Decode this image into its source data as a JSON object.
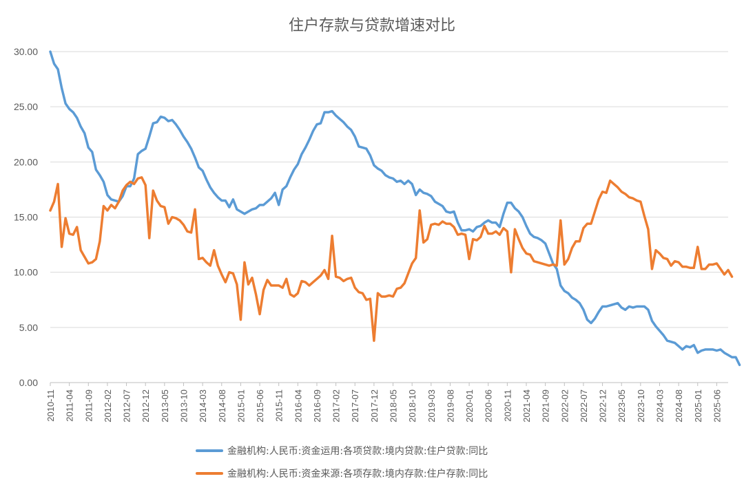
{
  "chart_data": {
    "type": "line",
    "title": "住户存款与贷款增速对比",
    "ylim": [
      0,
      30
    ],
    "yticks": [
      "0.00",
      "5.00",
      "10.00",
      "15.00",
      "20.00",
      "25.00",
      "30.00"
    ],
    "ytick_values": [
      0,
      5,
      10,
      15,
      20,
      25,
      30
    ],
    "x_start": "2010-11",
    "x_end": "2025-09",
    "xtick_labels": [
      "2010-11",
      "2011-04",
      "2011-09",
      "2012-02",
      "2012-07",
      "2012-12",
      "2013-05",
      "2013-10",
      "2014-03",
      "2014-08",
      "2015-01",
      "2015-06",
      "2015-11",
      "2016-04",
      "2016-09",
      "2017-02",
      "2017-07",
      "2017-12",
      "2018-05",
      "2018-10",
      "2019-03",
      "2019-08",
      "2020-01",
      "2020-06",
      "2020-11",
      "2021-04",
      "2021-09",
      "2022-02",
      "2022-07",
      "2022-12",
      "2023-05",
      "2023-10",
      "2024-03",
      "2024-08",
      "2025-01",
      "2025-06"
    ],
    "grid": true,
    "legend_position": "bottom",
    "series": [
      {
        "name": "金融机构:人民币:资金运用:各项贷款:境内贷款:住户贷款:同比",
        "color": "#5b9bd5",
        "values": [
          30.5,
          28.9,
          28.4,
          26.7,
          25.3,
          24.8,
          24.5,
          24.0,
          23.2,
          22.6,
          21.3,
          20.9,
          19.3,
          18.8,
          18.2,
          17.0,
          16.6,
          16.5,
          16.4,
          16.9,
          17.8,
          17.8,
          18.5,
          20.7,
          21.0,
          21.2,
          22.3,
          23.5,
          23.6,
          24.1,
          24.0,
          23.7,
          23.8,
          23.4,
          22.9,
          22.3,
          21.8,
          21.2,
          20.4,
          19.5,
          19.2,
          18.4,
          17.7,
          17.2,
          16.8,
          16.5,
          16.5,
          15.9,
          16.6,
          15.7,
          15.5,
          15.3,
          15.5,
          15.7,
          15.8,
          16.1,
          16.1,
          16.4,
          16.7,
          17.2,
          16.1,
          17.5,
          17.8,
          18.6,
          19.3,
          19.8,
          20.7,
          21.3,
          22.0,
          22.8,
          23.4,
          23.5,
          24.5,
          24.5,
          24.6,
          24.2,
          23.9,
          23.6,
          23.2,
          22.9,
          22.3,
          21.4,
          21.3,
          21.2,
          20.6,
          19.7,
          19.4,
          19.2,
          18.8,
          18.6,
          18.5,
          18.2,
          18.3,
          18.0,
          18.3,
          18.0,
          17.0,
          17.5,
          17.2,
          17.1,
          16.9,
          16.4,
          16.2,
          16.0,
          15.5,
          15.4,
          15.5,
          14.5,
          13.8,
          13.8,
          13.9,
          13.7,
          14.1,
          14.2,
          14.5,
          14.7,
          14.5,
          14.5,
          14.1,
          15.3,
          16.3,
          16.3,
          15.8,
          15.5,
          15.0,
          14.2,
          13.5,
          13.2,
          13.1,
          12.9,
          12.6,
          11.7,
          10.8,
          10.3,
          8.8,
          8.3,
          8.1,
          7.7,
          7.5,
          7.2,
          6.6,
          5.7,
          5.4,
          5.8,
          6.4,
          6.9,
          6.9,
          7.0,
          7.1,
          7.2,
          6.8,
          6.6,
          6.9,
          6.8,
          6.9,
          6.9,
          6.9,
          6.6,
          5.6,
          5.1,
          4.7,
          4.3,
          3.8,
          3.7,
          3.6,
          3.3,
          3.0,
          3.3,
          3.2,
          3.4,
          2.7,
          2.9,
          3.0,
          3.0,
          3.0,
          2.9,
          3.0,
          2.7,
          2.5,
          2.3,
          2.3,
          1.6
        ]
      },
      {
        "name": "金融机构:人民币:资金来源:各项存款:境内存款:住户存款:同比",
        "color": "#ed7d31",
        "values": [
          15.6,
          16.4,
          18.0,
          12.3,
          14.9,
          13.5,
          13.4,
          14.1,
          12.0,
          11.4,
          10.8,
          10.9,
          11.2,
          12.8,
          16.0,
          15.6,
          16.1,
          15.8,
          16.4,
          17.4,
          17.9,
          18.2,
          18.0,
          18.5,
          18.6,
          17.9,
          13.1,
          17.4,
          16.5,
          16.0,
          15.9,
          14.4,
          15.0,
          14.9,
          14.7,
          14.3,
          13.7,
          13.6,
          15.7,
          11.2,
          11.3,
          10.9,
          10.6,
          12.0,
          10.6,
          9.8,
          9.1,
          10.0,
          9.9,
          8.9,
          5.7,
          10.9,
          8.9,
          9.5,
          8.0,
          6.2,
          8.4,
          9.3,
          8.8,
          8.8,
          8.8,
          8.6,
          9.4,
          8.0,
          7.8,
          8.1,
          9.2,
          9.1,
          8.8,
          9.1,
          9.4,
          9.7,
          10.2,
          9.4,
          13.3,
          9.6,
          9.5,
          9.2,
          9.4,
          9.5,
          8.6,
          8.2,
          8.1,
          7.5,
          7.6,
          3.8,
          8.1,
          7.8,
          7.8,
          7.9,
          7.8,
          8.5,
          8.6,
          9.0,
          9.9,
          10.8,
          11.3,
          15.6,
          12.7,
          13.0,
          14.3,
          14.4,
          14.3,
          14.6,
          14.4,
          14.4,
          14.1,
          13.4,
          13.5,
          13.4,
          11.2,
          13.0,
          12.9,
          13.2,
          14.2,
          13.5,
          13.5,
          13.7,
          13.4,
          14.0,
          13.7,
          10.0,
          13.9,
          13.0,
          12.2,
          11.7,
          11.6,
          11.0,
          10.9,
          10.8,
          10.7,
          10.6,
          10.7,
          10.6,
          14.7,
          10.7,
          11.2,
          12.2,
          12.8,
          12.8,
          14.0,
          14.4,
          14.4,
          15.5,
          16.6,
          17.3,
          17.2,
          18.3,
          18.0,
          17.7,
          17.3,
          17.1,
          16.8,
          16.7,
          16.5,
          16.4,
          15.1,
          13.9,
          10.3,
          12.0,
          11.7,
          11.3,
          11.2,
          10.6,
          11.0,
          10.9,
          10.5,
          10.5,
          10.4,
          10.4,
          12.3,
          10.3,
          10.3,
          10.7,
          10.7,
          10.8,
          10.3,
          9.8,
          10.2,
          9.6
        ]
      }
    ]
  }
}
